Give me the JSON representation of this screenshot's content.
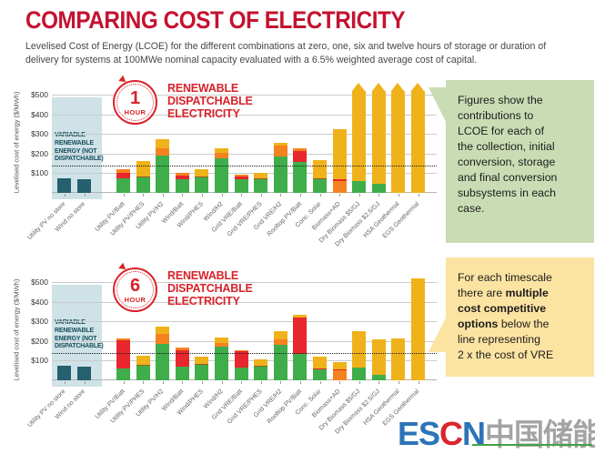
{
  "page": {
    "title": "COMPARING COST OF ELECTRICITY",
    "subtitle": "Levelised Cost of Energy (LCOE) for the different combinations at zero, one, six and twelve hours of storage or duration of\ndelivery for systems at 100MWe nominal capacity evaluated with a 6.5% weighted average cost of capital."
  },
  "vre_zone_label": "VARIABLE\nRENEWABLE\nENERGY (NOT\nDISPATCHABLE)",
  "colors": {
    "teal": "#265f6e",
    "green": "#3fae4a",
    "red": "#e8262d",
    "orange": "#f58220",
    "yellow": "#efb21a",
    "brown": "#9a5b26",
    "grid": "#cbcbcb",
    "vre_zone_fill": "#cfe2e8",
    "accent_red": "#c41230",
    "callout_green": "#c9dcb4",
    "callout_yellow": "#fbe3a1"
  },
  "charts": [
    {
      "badge": {
        "number": "1",
        "unit": "HOUR"
      },
      "heading": "RENEWABLE\nDISPATCHABLE\nELECTRICITY"
    },
    {
      "badge": {
        "number": "6",
        "unit": "HOUR"
      },
      "heading": "RENEWABLE\nDISPATCHABLE\nELECTRICITY"
    }
  ],
  "callouts": {
    "green": "Figures show the\ncontributions to\nLCOE for each of\nthe collection, initial\nconversion, storage\nand final conversion\nsubsystems in each\ncase.",
    "yellow_pre": "For each timescale\nthere are ",
    "yellow_bold": "multiple\ncost competitive\noptions",
    "yellow_post": " below the\nline representing\n2 x the cost of VRE"
  },
  "watermark": {
    "es": "ES",
    "c": "C",
    "n": "N",
    "cn": "中国储能网"
  },
  "chart_data": [
    {
      "type": "bar",
      "stacked": true,
      "title": "1 HOUR — RENEWABLE DISPATCHABLE ELECTRICITY",
      "ylabel": "Levelised cost of energy ($/MWh)",
      "ylim": [
        0,
        500
      ],
      "yticks": [
        100,
        200,
        300,
        400,
        500
      ],
      "ytick_labels": [
        "$100",
        "$200",
        "$300",
        "$400",
        "$500"
      ],
      "vre_x2_line": 140,
      "grid": true,
      "categories": [
        "Utility PV no store",
        "Wind no store",
        "Utility PV/Batt",
        "Utility PV/PHES",
        "Utility PV/H2",
        "Wind/Batt",
        "Wind/PHES",
        "Wind/H2",
        "Grid VRE/Batt",
        "Grid VRE/PHES",
        "Grid VRE/H2",
        "Rooftop PV/Batt",
        "Conc. Solar",
        "Biomass+AD",
        "Dry Biomass $5/GJ",
        "Dry Biomass $2.5/GJ",
        "HSA Geothermal",
        "EGS Geothermal"
      ],
      "bars": [
        {
          "segments": [
            {
              "c": "teal",
              "v": 72
            }
          ]
        },
        {
          "segments": [
            {
              "c": "teal",
              "v": 68
            }
          ]
        },
        {
          "segments": [
            {
              "c": "green",
              "v": 75
            },
            {
              "c": "red",
              "v": 28
            },
            {
              "c": "orange",
              "v": 19
            }
          ]
        },
        {
          "segments": [
            {
              "c": "green",
              "v": 80
            },
            {
              "c": "brown",
              "v": 4
            },
            {
              "c": "yellow",
              "v": 78
            }
          ]
        },
        {
          "segments": [
            {
              "c": "green",
              "v": 190
            },
            {
              "c": "orange",
              "v": 36
            },
            {
              "c": "yellow",
              "v": 46
            }
          ]
        },
        {
          "segments": [
            {
              "c": "green",
              "v": 68
            },
            {
              "c": "red",
              "v": 22
            },
            {
              "c": "orange",
              "v": 12
            }
          ]
        },
        {
          "segments": [
            {
              "c": "green",
              "v": 78
            },
            {
              "c": "brown",
              "v": 4
            },
            {
              "c": "yellow",
              "v": 38
            }
          ]
        },
        {
          "segments": [
            {
              "c": "green",
              "v": 177
            },
            {
              "c": "orange",
              "v": 29
            },
            {
              "c": "yellow",
              "v": 22
            }
          ]
        },
        {
          "segments": [
            {
              "c": "green",
              "v": 70
            },
            {
              "c": "red",
              "v": 15
            },
            {
              "c": "orange",
              "v": 10
            }
          ]
        },
        {
          "segments": [
            {
              "c": "green",
              "v": 70
            },
            {
              "c": "brown",
              "v": 4
            },
            {
              "c": "yellow",
              "v": 28
            }
          ]
        },
        {
          "segments": [
            {
              "c": "green",
              "v": 187
            },
            {
              "c": "orange",
              "v": 56
            },
            {
              "c": "yellow",
              "v": 12
            }
          ]
        },
        {
          "segments": [
            {
              "c": "green",
              "v": 158
            },
            {
              "c": "red",
              "v": 56
            },
            {
              "c": "orange",
              "v": 11
            }
          ]
        },
        {
          "segments": [
            {
              "c": "green",
              "v": 71
            },
            {
              "c": "brown",
              "v": 4
            },
            {
              "c": "yellow",
              "v": 90
            }
          ]
        },
        {
          "segments": [
            {
              "c": "orange",
              "v": 62
            },
            {
              "c": "red",
              "v": 8
            },
            {
              "c": "yellow",
              "v": 255
            }
          ]
        },
        {
          "segments": [
            {
              "c": "green",
              "v": 60
            },
            {
              "c": "yellow",
              "v": 460
            }
          ],
          "exceeds_axis": true
        },
        {
          "segments": [
            {
              "c": "green",
              "v": 45
            },
            {
              "c": "yellow",
              "v": 475
            }
          ],
          "exceeds_axis": true
        },
        {
          "segments": [
            {
              "c": "yellow",
              "v": 520
            }
          ],
          "exceeds_axis": true
        },
        {
          "segments": [
            {
              "c": "yellow",
              "v": 520
            }
          ],
          "exceeds_axis": true
        }
      ]
    },
    {
      "type": "bar",
      "stacked": true,
      "title": "6 HOUR — RENEWABLE DISPATCHABLE ELECTRICITY",
      "ylabel": "Levelised cost of energy ($/MWh)",
      "ylim": [
        0,
        500
      ],
      "yticks": [
        100,
        200,
        300,
        400,
        500
      ],
      "ytick_labels": [
        "$100",
        "$200",
        "$300",
        "$400",
        "$500"
      ],
      "vre_x2_line": 140,
      "grid": true,
      "categories": [
        "Utility PV no store",
        "Wind no store",
        "Utility PV/Batt",
        "Utility PV/PHES",
        "Utility PV/H2",
        "Wind/Batt",
        "Wind/PHES",
        "Wind/H2",
        "Grid VRE/Batt",
        "Grid VRE/PHES",
        "Grid VRE/H2",
        "Rooftop PV/Batt",
        "Conc. Solar",
        "Biomass+AD",
        "Dry Biomass $5/GJ",
        "Dry Biomass $2.5/GJ",
        "HSA Geothermal",
        "EGS Geothermal"
      ],
      "bars": [
        {
          "segments": [
            {
              "c": "teal",
              "v": 72
            }
          ]
        },
        {
          "segments": [
            {
              "c": "teal",
              "v": 68
            }
          ]
        },
        {
          "segments": [
            {
              "c": "green",
              "v": 62
            },
            {
              "c": "red",
              "v": 143
            },
            {
              "c": "orange",
              "v": 10
            }
          ]
        },
        {
          "segments": [
            {
              "c": "green",
              "v": 72
            },
            {
              "c": "brown",
              "v": 5
            },
            {
              "c": "yellow",
              "v": 50
            }
          ]
        },
        {
          "segments": [
            {
              "c": "green",
              "v": 185
            },
            {
              "c": "orange",
              "v": 50
            },
            {
              "c": "yellow",
              "v": 37
            }
          ]
        },
        {
          "segments": [
            {
              "c": "green",
              "v": 70
            },
            {
              "c": "red",
              "v": 85
            },
            {
              "c": "orange",
              "v": 10
            }
          ]
        },
        {
          "segments": [
            {
              "c": "green",
              "v": 78
            },
            {
              "c": "brown",
              "v": 4
            },
            {
              "c": "yellow",
              "v": 38
            }
          ]
        },
        {
          "segments": [
            {
              "c": "green",
              "v": 170
            },
            {
              "c": "orange",
              "v": 20
            },
            {
              "c": "yellow",
              "v": 30
            }
          ]
        },
        {
          "segments": [
            {
              "c": "green",
              "v": 65
            },
            {
              "c": "red",
              "v": 85
            },
            {
              "c": "orange",
              "v": 5
            }
          ]
        },
        {
          "segments": [
            {
              "c": "green",
              "v": 68
            },
            {
              "c": "brown",
              "v": 4
            },
            {
              "c": "yellow",
              "v": 33
            }
          ]
        },
        {
          "segments": [
            {
              "c": "green",
              "v": 182
            },
            {
              "c": "orange",
              "v": 25
            },
            {
              "c": "yellow",
              "v": 45
            }
          ]
        },
        {
          "segments": [
            {
              "c": "green",
              "v": 135
            },
            {
              "c": "red",
              "v": 185
            },
            {
              "c": "yellow",
              "v": 15
            }
          ]
        },
        {
          "segments": [
            {
              "c": "green",
              "v": 57
            },
            {
              "c": "red",
              "v": 5
            },
            {
              "c": "yellow",
              "v": 58
            }
          ]
        },
        {
          "segments": [
            {
              "c": "orange",
              "v": 50
            },
            {
              "c": "red",
              "v": 5
            },
            {
              "c": "yellow",
              "v": 40
            }
          ]
        },
        {
          "segments": [
            {
              "c": "green",
              "v": 64
            },
            {
              "c": "yellow",
              "v": 184
            }
          ]
        },
        {
          "segments": [
            {
              "c": "green",
              "v": 29
            },
            {
              "c": "yellow",
              "v": 180
            }
          ]
        },
        {
          "segments": [
            {
              "c": "yellow",
              "v": 215
            }
          ]
        },
        {
          "segments": [
            {
              "c": "yellow",
              "v": 525
            }
          ]
        }
      ]
    }
  ]
}
